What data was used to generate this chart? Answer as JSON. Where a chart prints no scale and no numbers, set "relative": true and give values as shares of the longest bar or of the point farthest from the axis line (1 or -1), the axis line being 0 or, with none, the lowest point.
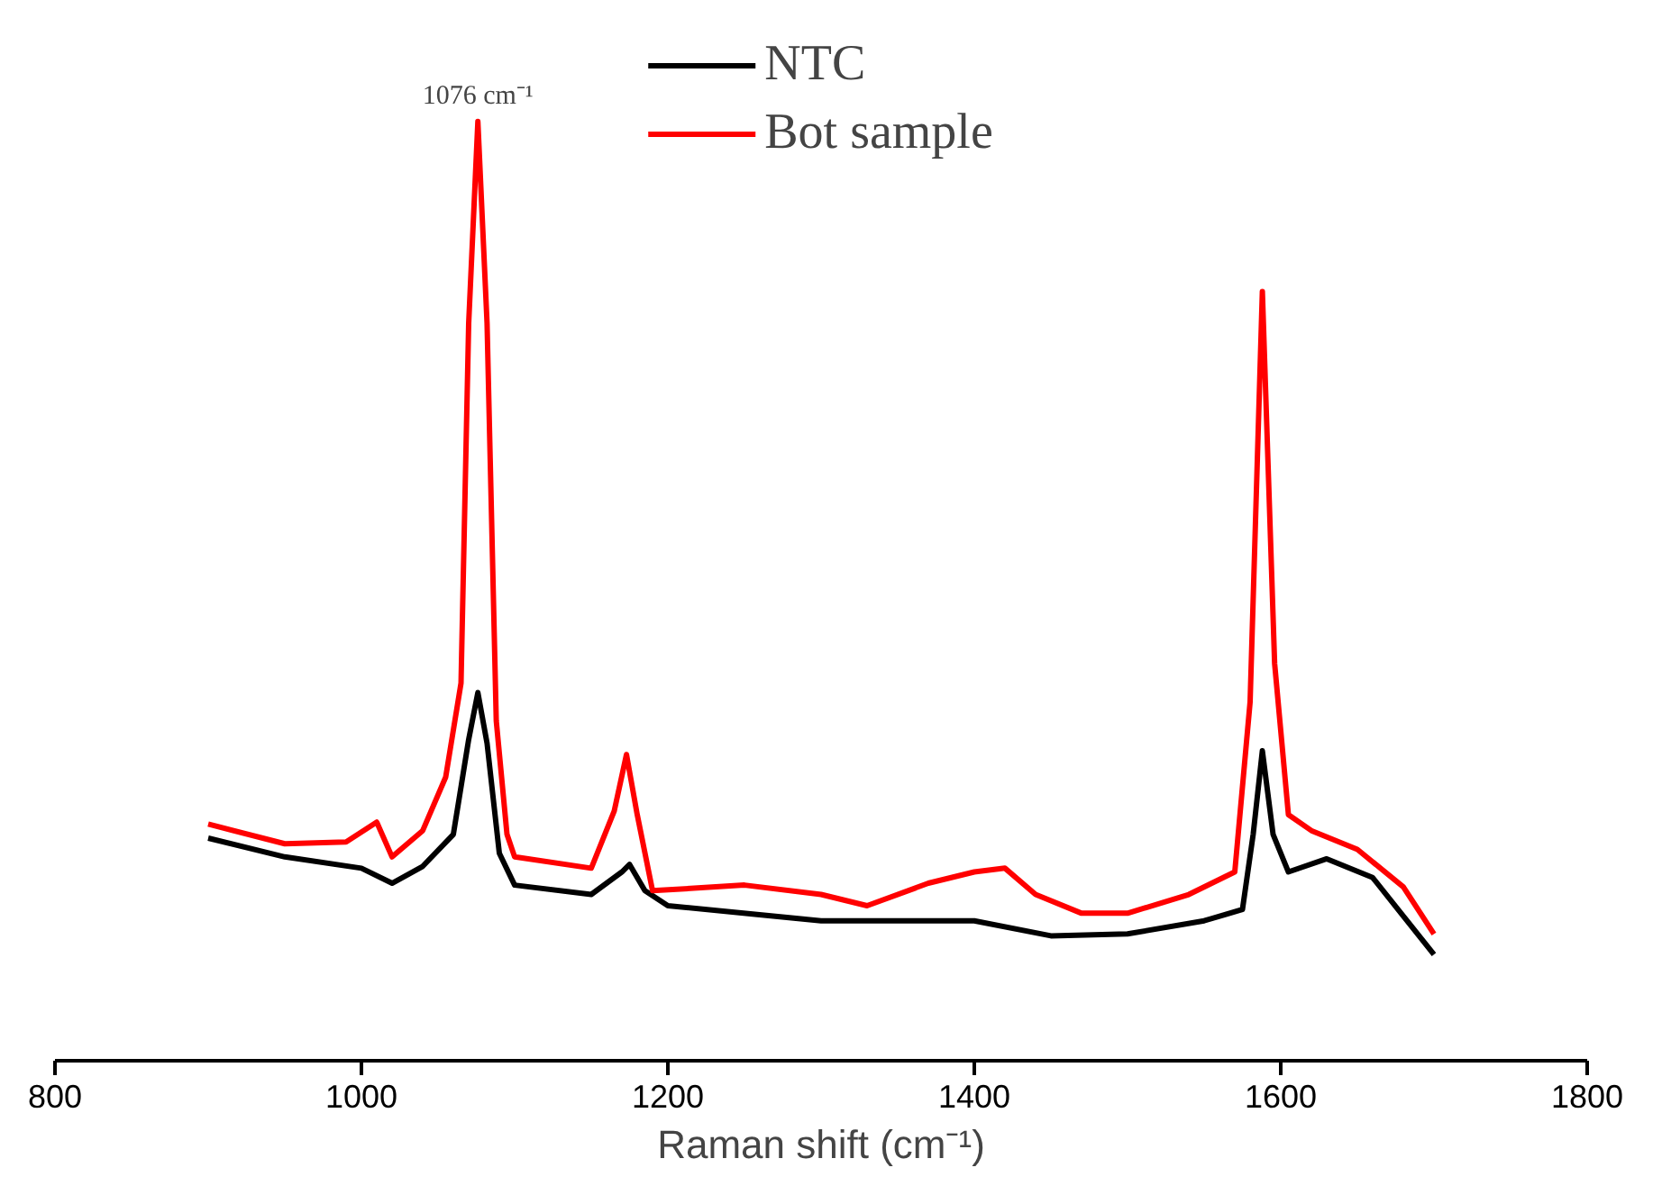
{
  "chart_data": {
    "type": "line",
    "relative": true,
    "xlabel": "Raman shift (cm⁻¹)",
    "xlim": [
      800,
      1800
    ],
    "xticks": [
      800,
      1000,
      1200,
      1400,
      1600,
      1800
    ],
    "grid": false,
    "legend": "top right",
    "tick_labels": "x",
    "annotations": [
      {
        "text": "1076 cm⁻¹",
        "x": 1076,
        "y": 1
      }
    ],
    "series": [
      {
        "name": "NTC",
        "color": "#000000",
        "x": [
          900,
          950,
          1000,
          1020,
          1040,
          1060,
          1070,
          1076,
          1082,
          1090,
          1100,
          1150,
          1170,
          1175,
          1185,
          1200,
          1300,
          1400,
          1450,
          1500,
          1550,
          1575,
          1582,
          1588,
          1595,
          1605,
          1630,
          1660,
          1700
        ],
        "values": [
          0.237,
          0.217,
          0.205,
          0.189,
          0.207,
          0.241,
          0.342,
          0.392,
          0.338,
          0.221,
          0.187,
          0.177,
          0.201,
          0.209,
          0.181,
          0.165,
          0.149,
          0.149,
          0.133,
          0.135,
          0.149,
          0.161,
          0.241,
          0.33,
          0.241,
          0.201,
          0.215,
          0.195,
          0.113
        ]
      },
      {
        "name": "Bot sample",
        "color": "#ff0000",
        "x": [
          900,
          950,
          990,
          1010,
          1020,
          1040,
          1055,
          1065,
          1070,
          1076,
          1082,
          1088,
          1095,
          1100,
          1150,
          1165,
          1173,
          1180,
          1190,
          1250,
          1300,
          1330,
          1370,
          1400,
          1420,
          1440,
          1470,
          1500,
          1540,
          1570,
          1580,
          1588,
          1596,
          1605,
          1620,
          1650,
          1680,
          1700
        ],
        "values": [
          0.252,
          0.231,
          0.233,
          0.254,
          0.217,
          0.245,
          0.302,
          0.402,
          0.785,
          1,
          0.785,
          0.362,
          0.241,
          0.217,
          0.205,
          0.266,
          0.326,
          0.262,
          0.181,
          0.187,
          0.177,
          0.165,
          0.189,
          0.201,
          0.205,
          0.177,
          0.157,
          0.157,
          0.177,
          0.201,
          0.382,
          0.819,
          0.423,
          0.262,
          0.245,
          0.225,
          0.185,
          0.135
        ]
      }
    ]
  }
}
